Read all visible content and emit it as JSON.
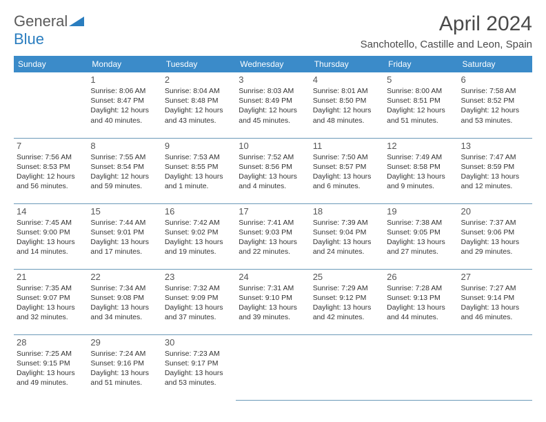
{
  "brand": {
    "part1": "General",
    "part2": "Blue"
  },
  "title": "April 2024",
  "location": "Sanchotello, Castille and Leon, Spain",
  "header_bg": "#3b8bc9",
  "weekday_names": [
    "Sunday",
    "Monday",
    "Tuesday",
    "Wednesday",
    "Thursday",
    "Friday",
    "Saturday"
  ],
  "weeks": [
    [
      null,
      {
        "d": "1",
        "sr": "8:06 AM",
        "ss": "8:47 PM",
        "dl": "12 hours and 40 minutes."
      },
      {
        "d": "2",
        "sr": "8:04 AM",
        "ss": "8:48 PM",
        "dl": "12 hours and 43 minutes."
      },
      {
        "d": "3",
        "sr": "8:03 AM",
        "ss": "8:49 PM",
        "dl": "12 hours and 45 minutes."
      },
      {
        "d": "4",
        "sr": "8:01 AM",
        "ss": "8:50 PM",
        "dl": "12 hours and 48 minutes."
      },
      {
        "d": "5",
        "sr": "8:00 AM",
        "ss": "8:51 PM",
        "dl": "12 hours and 51 minutes."
      },
      {
        "d": "6",
        "sr": "7:58 AM",
        "ss": "8:52 PM",
        "dl": "12 hours and 53 minutes."
      }
    ],
    [
      {
        "d": "7",
        "sr": "7:56 AM",
        "ss": "8:53 PM",
        "dl": "12 hours and 56 minutes."
      },
      {
        "d": "8",
        "sr": "7:55 AM",
        "ss": "8:54 PM",
        "dl": "12 hours and 59 minutes."
      },
      {
        "d": "9",
        "sr": "7:53 AM",
        "ss": "8:55 PM",
        "dl": "13 hours and 1 minute."
      },
      {
        "d": "10",
        "sr": "7:52 AM",
        "ss": "8:56 PM",
        "dl": "13 hours and 4 minutes."
      },
      {
        "d": "11",
        "sr": "7:50 AM",
        "ss": "8:57 PM",
        "dl": "13 hours and 6 minutes."
      },
      {
        "d": "12",
        "sr": "7:49 AM",
        "ss": "8:58 PM",
        "dl": "13 hours and 9 minutes."
      },
      {
        "d": "13",
        "sr": "7:47 AM",
        "ss": "8:59 PM",
        "dl": "13 hours and 12 minutes."
      }
    ],
    [
      {
        "d": "14",
        "sr": "7:45 AM",
        "ss": "9:00 PM",
        "dl": "13 hours and 14 minutes."
      },
      {
        "d": "15",
        "sr": "7:44 AM",
        "ss": "9:01 PM",
        "dl": "13 hours and 17 minutes."
      },
      {
        "d": "16",
        "sr": "7:42 AM",
        "ss": "9:02 PM",
        "dl": "13 hours and 19 minutes."
      },
      {
        "d": "17",
        "sr": "7:41 AM",
        "ss": "9:03 PM",
        "dl": "13 hours and 22 minutes."
      },
      {
        "d": "18",
        "sr": "7:39 AM",
        "ss": "9:04 PM",
        "dl": "13 hours and 24 minutes."
      },
      {
        "d": "19",
        "sr": "7:38 AM",
        "ss": "9:05 PM",
        "dl": "13 hours and 27 minutes."
      },
      {
        "d": "20",
        "sr": "7:37 AM",
        "ss": "9:06 PM",
        "dl": "13 hours and 29 minutes."
      }
    ],
    [
      {
        "d": "21",
        "sr": "7:35 AM",
        "ss": "9:07 PM",
        "dl": "13 hours and 32 minutes."
      },
      {
        "d": "22",
        "sr": "7:34 AM",
        "ss": "9:08 PM",
        "dl": "13 hours and 34 minutes."
      },
      {
        "d": "23",
        "sr": "7:32 AM",
        "ss": "9:09 PM",
        "dl": "13 hours and 37 minutes."
      },
      {
        "d": "24",
        "sr": "7:31 AM",
        "ss": "9:10 PM",
        "dl": "13 hours and 39 minutes."
      },
      {
        "d": "25",
        "sr": "7:29 AM",
        "ss": "9:12 PM",
        "dl": "13 hours and 42 minutes."
      },
      {
        "d": "26",
        "sr": "7:28 AM",
        "ss": "9:13 PM",
        "dl": "13 hours and 44 minutes."
      },
      {
        "d": "27",
        "sr": "7:27 AM",
        "ss": "9:14 PM",
        "dl": "13 hours and 46 minutes."
      }
    ],
    [
      {
        "d": "28",
        "sr": "7:25 AM",
        "ss": "9:15 PM",
        "dl": "13 hours and 49 minutes."
      },
      {
        "d": "29",
        "sr": "7:24 AM",
        "ss": "9:16 PM",
        "dl": "13 hours and 51 minutes."
      },
      {
        "d": "30",
        "sr": "7:23 AM",
        "ss": "9:17 PM",
        "dl": "13 hours and 53 minutes."
      },
      null,
      null,
      null,
      null
    ]
  ],
  "labels": {
    "sunrise": "Sunrise:",
    "sunset": "Sunset:",
    "daylight": "Daylight:"
  }
}
